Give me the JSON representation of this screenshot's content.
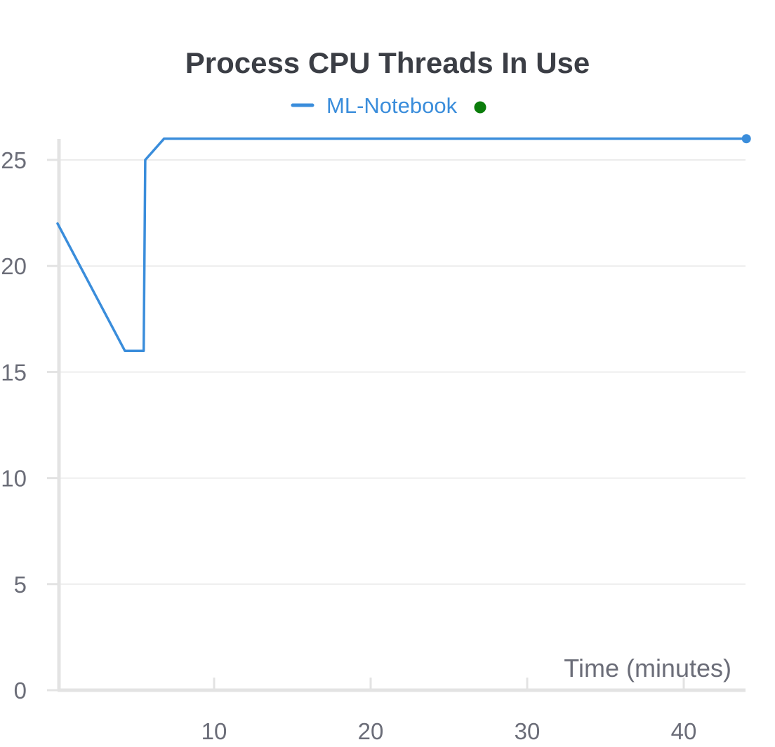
{
  "chart_data": {
    "type": "line",
    "title": "Process CPU Threads In Use",
    "xlabel": "Time (minutes)",
    "ylabel": "",
    "xlim": [
      0,
      44
    ],
    "ylim": [
      0,
      26
    ],
    "x_ticks": [
      10,
      20,
      30,
      40
    ],
    "y_ticks": [
      0,
      5,
      10,
      15,
      20,
      25
    ],
    "grid": true,
    "legend_position": "top-center",
    "series": [
      {
        "name": "ML-Notebook",
        "color": "#3a8ddb",
        "x": [
          0,
          4.3,
          5.5,
          5.6,
          6.8,
          44
        ],
        "y": [
          22,
          16,
          16,
          25,
          26,
          26
        ],
        "end_marker": true
      }
    ],
    "legend_status_color": "#0b7d0b"
  }
}
